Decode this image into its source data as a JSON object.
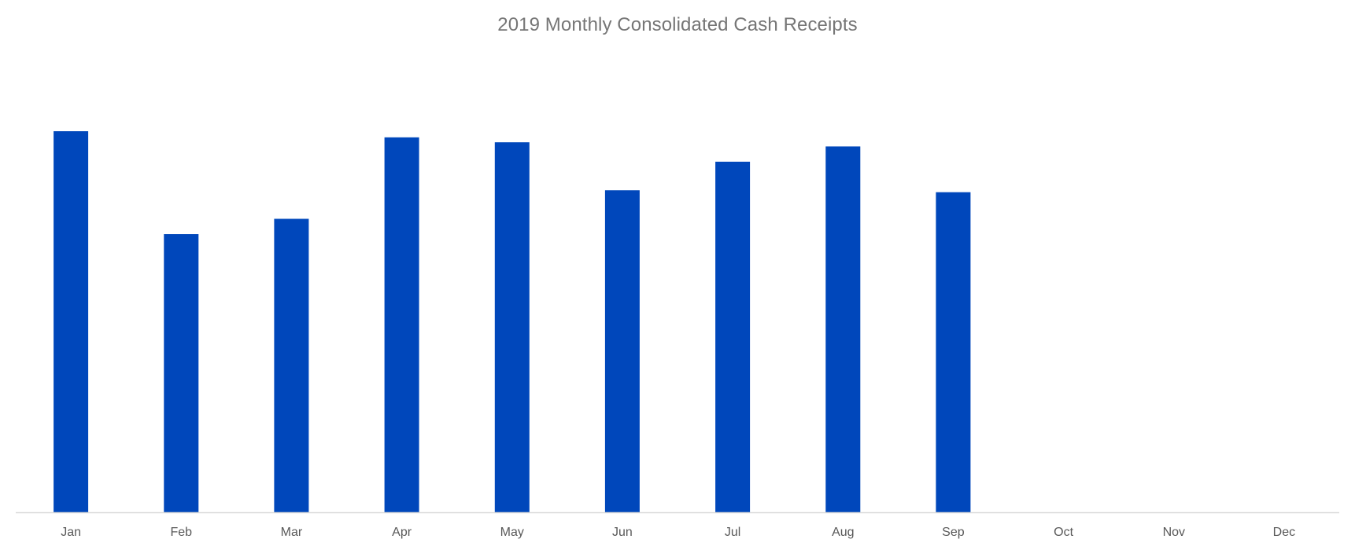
{
  "chart_data": {
    "type": "bar",
    "title": "2019 Monthly Consolidated Cash Receipts",
    "xlabel": "",
    "ylabel": "",
    "categories": [
      "Jan",
      "Feb",
      "Mar",
      "Apr",
      "May",
      "Jun",
      "Jul",
      "Aug",
      "Sep",
      "Oct",
      "Nov",
      "Dec"
    ],
    "values": [
      100,
      73,
      77,
      98.4,
      97.1,
      84.5,
      92,
      96,
      84,
      null,
      null,
      null
    ],
    "ylim": [
      0,
      120
    ],
    "grid": false,
    "legend": "none",
    "bar_color": "#0047BB",
    "axis_color": "#D9D9D9"
  }
}
